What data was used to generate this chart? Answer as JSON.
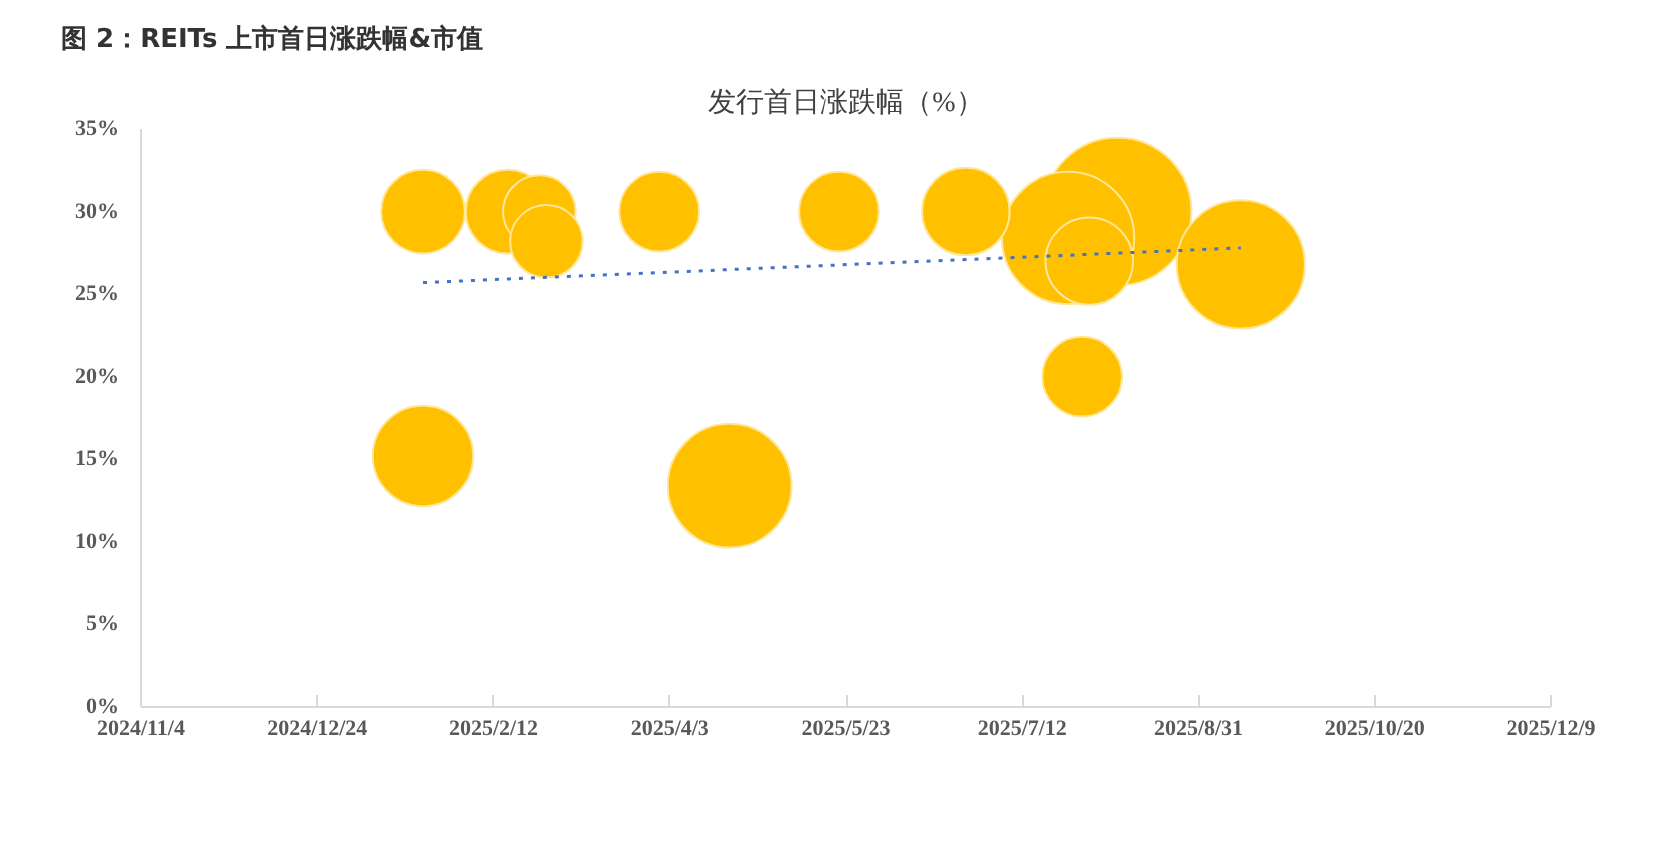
{
  "chart_data": {
    "type": "bubble",
    "title": "图 2：REITs 上市首日涨跌幅&市值",
    "subtitle": "发行首日涨跌幅（%）",
    "x": [
      "2025-01-23",
      "2025-01-23",
      "2025-02-16",
      "2025-02-25",
      "2025-02-27",
      "2025-03-31",
      "2025-04-20",
      "2025-05-21",
      "2025-06-26",
      "2025-07-25",
      "2025-07-31",
      "2025-07-29",
      "2025-08-08",
      "2025-09-12"
    ],
    "series": [
      {
        "color": "#ffc000",
        "values": [
          30,
          15.2,
          30,
          30,
          28.2,
          30,
          13.4,
          30,
          30,
          28.4,
          27,
          20,
          30,
          26.8
        ],
        "sizes": [
          0.32,
          0.46,
          0.32,
          0.24,
          0.24,
          0.29,
          0.7,
          0.29,
          0.35,
          0.8,
          0.35,
          0.29,
          1,
          0.75
        ]
      },
      {
        "type": "line",
        "color": "#4472c4",
        "line_style": "dotted",
        "marker": "none",
        "x": [
          "2025-01-23",
          "2025-09-12"
        ],
        "values": [
          25.7,
          27.8
        ]
      }
    ],
    "marker": "circle",
    "grid": false,
    "xlim": [
      "2024-11-04",
      "2025-12-09"
    ],
    "xticks": [
      {
        "value": "2024-11-04",
        "label": "2024/11/4"
      },
      {
        "value": "2024-12-24",
        "label": "2024/12/24"
      },
      {
        "value": "2025-02-12",
        "label": "2025/2/12"
      },
      {
        "value": "2025-04-03",
        "label": "2025/4/3"
      },
      {
        "value": "2025-05-23",
        "label": "2025/5/23"
      },
      {
        "value": "2025-07-12",
        "label": "2025/7/12"
      },
      {
        "value": "2025-08-31",
        "label": "2025/8/31"
      },
      {
        "value": "2025-10-20",
        "label": "2025/10/20"
      },
      {
        "value": "2025-12-09",
        "label": "2025/12/9"
      }
    ],
    "ylim": [
      0,
      35
    ],
    "yticks": [
      {
        "value": 0,
        "label": "0%"
      },
      {
        "value": 5,
        "label": "5%"
      },
      {
        "value": 10,
        "label": "10%"
      },
      {
        "value": 15,
        "label": "15%"
      },
      {
        "value": 20,
        "label": "20%"
      },
      {
        "value": 25,
        "label": "25%"
      },
      {
        "value": 30,
        "label": "30%"
      },
      {
        "value": 35,
        "label": "35%"
      }
    ]
  }
}
